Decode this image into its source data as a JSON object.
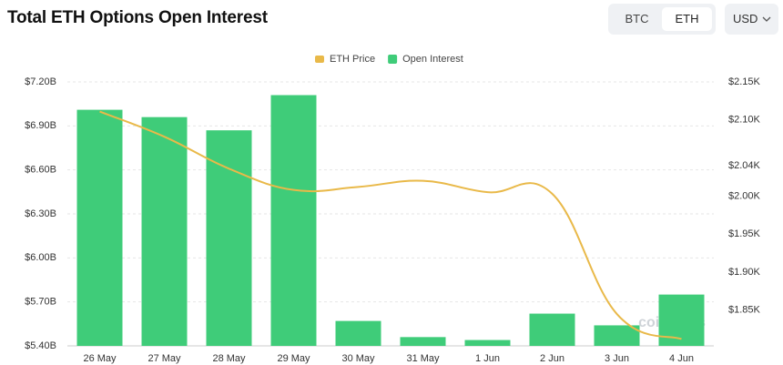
{
  "header": {
    "title": "Total ETH Options Open Interest",
    "toggle": [
      "BTC",
      "ETH"
    ],
    "currency": "USD"
  },
  "watermark": "coinglass",
  "chart_data": {
    "type": "bar",
    "categories": [
      "26 May",
      "27 May",
      "28 May",
      "29 May",
      "30 May",
      "31 May",
      "1 Jun",
      "2 Jun",
      "3 Jun",
      "4 Jun"
    ],
    "series": [
      {
        "name": "ETH Price",
        "type": "line",
        "axis": "y2",
        "color": "#e9b949",
        "values": [
          2.111,
          2.078,
          2.036,
          2.008,
          2.012,
          2.02,
          2.005,
          2.003,
          1.845,
          1.812
        ]
      },
      {
        "name": "Open Interest",
        "type": "bar",
        "color": "#3fcc79",
        "values": [
          7.01,
          6.96,
          6.87,
          7.11,
          5.57,
          5.46,
          5.44,
          5.62,
          5.54,
          5.75
        ]
      }
    ],
    "ylim": [
      5.4,
      7.2
    ],
    "yticks": [
      {
        "value": 5.4,
        "label": "$5.40B"
      },
      {
        "value": 5.7,
        "label": "$5.70B"
      },
      {
        "value": 6.0,
        "label": "$6.00B"
      },
      {
        "value": 6.3,
        "label": "$6.30B"
      },
      {
        "value": 6.6,
        "label": "$6.60B"
      },
      {
        "value": 6.9,
        "label": "$6.90B"
      },
      {
        "value": 7.2,
        "label": "$7.20B"
      }
    ],
    "y2lim": [
      1.803,
      2.15
    ],
    "y2ticks": [
      {
        "value": 1.85,
        "label": "$1.85K"
      },
      {
        "value": 1.9,
        "label": "$1.90K"
      },
      {
        "value": 1.95,
        "label": "$1.95K"
      },
      {
        "value": 2.0,
        "label": "$2.00K"
      },
      {
        "value": 2.04,
        "label": "$2.04K"
      },
      {
        "value": 2.1,
        "label": "$2.10K"
      },
      {
        "value": 2.15,
        "label": "$2.15K"
      }
    ],
    "grid": true
  }
}
